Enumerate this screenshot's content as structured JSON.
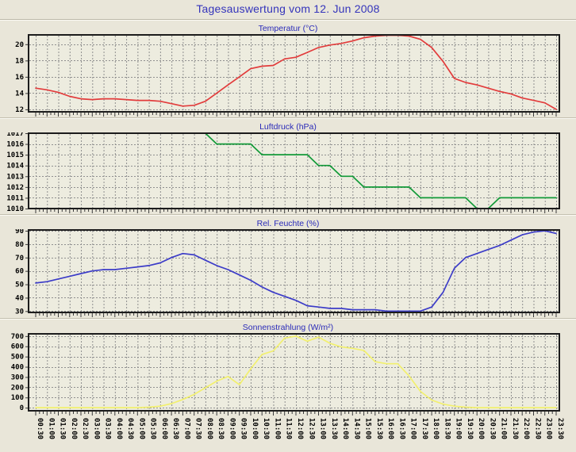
{
  "page": {
    "title": "Tagesauswertung vom 12. Jun 2008"
  },
  "colors": {
    "page_bg": "#e9e6d9",
    "plot_bg": "#edecdf",
    "grid": "#8f8f8f",
    "frame": "#1c1c1c",
    "axis_text": "#000000",
    "title_blue": "#3434bb",
    "temperature_red": "#e23c3c",
    "pressure_green": "#129a38",
    "humidity_blue": "#3c3cc8",
    "radiation_yellow": "#f2f06e"
  },
  "x_labels": [
    "00:30",
    "01:00",
    "01:30",
    "02:00",
    "02:30",
    "03:00",
    "03:30",
    "04:00",
    "04:30",
    "05:00",
    "05:30",
    "06:00",
    "06:30",
    "07:00",
    "07:30",
    "08:00",
    "08:30",
    "09:00",
    "09:30",
    "10:00",
    "10:30",
    "11:00",
    "11:30",
    "12:00",
    "12:30",
    "13:00",
    "13:30",
    "14:00",
    "14:30",
    "15:00",
    "15:30",
    "16:00",
    "16:30",
    "17:00",
    "17:30",
    "18:00",
    "18:30",
    "19:00",
    "19:30",
    "20:00",
    "20:30",
    "21:00",
    "21:30",
    "22:00",
    "22:30",
    "23:00",
    "23:30"
  ],
  "x_axis": "shared x_labels, 30-minute interval, labels rotated 90°, shown under bottom chart only",
  "chart_data": [
    {
      "type": "line",
      "title": "Temperatur (°C)",
      "color": "#e23c3c",
      "ylim": [
        11.7,
        21.15
      ],
      "yticks": [
        12,
        14,
        16,
        18,
        20
      ],
      "grid": true,
      "values": [
        14.6,
        14.4,
        14.1,
        13.6,
        13.3,
        13.2,
        13.3,
        13.3,
        13.2,
        13.1,
        13.1,
        13.0,
        12.7,
        12.4,
        12.5,
        13.0,
        14.0,
        15.0,
        16.0,
        17.0,
        17.3,
        17.4,
        18.2,
        18.4,
        19.0,
        19.6,
        19.9,
        20.1,
        20.4,
        20.8,
        21.0,
        21.1,
        21.1,
        21.0,
        20.6,
        19.6,
        17.9,
        15.8,
        15.3,
        15.0,
        14.6,
        14.2,
        13.9,
        13.4,
        13.1,
        12.8,
        12.0
      ]
    },
    {
      "type": "line",
      "title": "Luftdruck (hPa)",
      "color": "#129a38",
      "ylim": [
        1010,
        1017
      ],
      "yticks": [
        1010,
        1011,
        1012,
        1013,
        1014,
        1015,
        1016,
        1017
      ],
      "grid": true,
      "values": [
        1017,
        1017,
        1017,
        1017,
        1017,
        1017,
        1017,
        1017,
        1017,
        1017,
        1017,
        1017,
        1017,
        1017,
        1017,
        1017,
        1016,
        1016,
        1016,
        1016,
        1015,
        1015,
        1015,
        1015,
        1015,
        1014,
        1014,
        1013,
        1013,
        1012,
        1012,
        1012,
        1012,
        1012,
        1011,
        1011,
        1011,
        1011,
        1011,
        1010,
        1010,
        1011,
        1011,
        1011,
        1011,
        1011,
        1011
      ]
    },
    {
      "type": "line",
      "title": "Rel. Feuchte (%)",
      "color": "#3c3cc8",
      "ylim": [
        29,
        90.6
      ],
      "yticks": [
        30,
        40,
        50,
        60,
        70,
        80,
        90
      ],
      "grid": true,
      "values": [
        51,
        52,
        54,
        56,
        58,
        60,
        61,
        61,
        62,
        63,
        64,
        66,
        70,
        73,
        72,
        68,
        64,
        61,
        57,
        53,
        48,
        44,
        41,
        38,
        34,
        33,
        32,
        32,
        31,
        31,
        31,
        30,
        30,
        30,
        30,
        33,
        44,
        62,
        70,
        73,
        76,
        79,
        83,
        87,
        89,
        90,
        88
      ]
    },
    {
      "type": "line",
      "title": "Sonnenstrahlung (W/m²)",
      "color": "#f2f06e",
      "ylim": [
        -30,
        722
      ],
      "yticks": [
        0,
        100,
        200,
        300,
        400,
        500,
        600,
        700
      ],
      "grid": true,
      "values": [
        0,
        0,
        0,
        0,
        0,
        0,
        0,
        0,
        0,
        0,
        5,
        15,
        40,
        80,
        130,
        195,
        260,
        305,
        225,
        380,
        520,
        555,
        680,
        700,
        650,
        690,
        630,
        595,
        580,
        560,
        450,
        430,
        430,
        310,
        160,
        75,
        35,
        15,
        5,
        0,
        0,
        0,
        0,
        0,
        0,
        0,
        0
      ]
    }
  ]
}
